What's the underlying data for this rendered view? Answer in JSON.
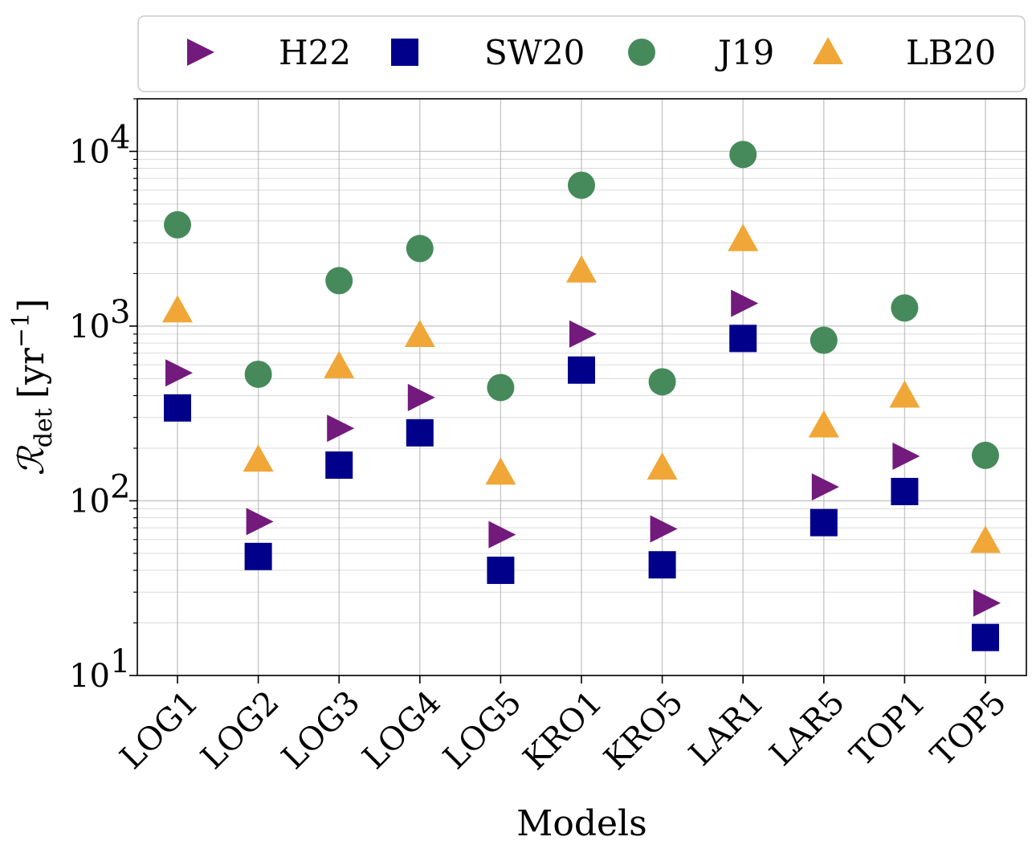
{
  "chart_data": {
    "type": "scatter",
    "title": "",
    "xlabel": "Models",
    "ylabel": "R_det [yr^-1]",
    "ylabel_parts": {
      "symbol": "ℛ",
      "subscript": "det",
      "unit_open": "[yr",
      "unit_exp": "−1",
      "unit_close": "]"
    },
    "yscale": "log",
    "ylim": [
      10,
      20000
    ],
    "yticks": [
      {
        "value": 10,
        "base": "10",
        "exp": "1"
      },
      {
        "value": 100,
        "base": "10",
        "exp": "2"
      },
      {
        "value": 1000,
        "base": "10",
        "exp": "3"
      },
      {
        "value": 10000,
        "base": "10",
        "exp": "4"
      }
    ],
    "grid": true,
    "legend_position": "top",
    "categories": [
      "LOG1",
      "LOG2",
      "LOG3",
      "LOG4",
      "LOG5",
      "KRO1",
      "KRO5",
      "LAR1",
      "LAR5",
      "TOP1",
      "TOP5"
    ],
    "series": [
      {
        "name": "H22",
        "marker": "triangle-right",
        "color": "#731a7d",
        "values": [
          540,
          76,
          260,
          390,
          64,
          900,
          69,
          1350,
          120,
          180,
          26
        ]
      },
      {
        "name": "SW20",
        "marker": "square",
        "color": "#00008b",
        "values": [
          340,
          48,
          160,
          245,
          40,
          560,
          43,
          850,
          75,
          113,
          16.5
        ]
      },
      {
        "name": "J19",
        "marker": "circle",
        "color": "#468a5b",
        "values": [
          3800,
          530,
          1820,
          2780,
          445,
          6400,
          480,
          9600,
          830,
          1270,
          182
        ]
      },
      {
        "name": "LB20",
        "marker": "triangle-up",
        "color": "#f0a737",
        "values": [
          1230,
          172,
          590,
          890,
          145,
          2080,
          155,
          3150,
          270,
          400,
          59
        ]
      }
    ]
  }
}
